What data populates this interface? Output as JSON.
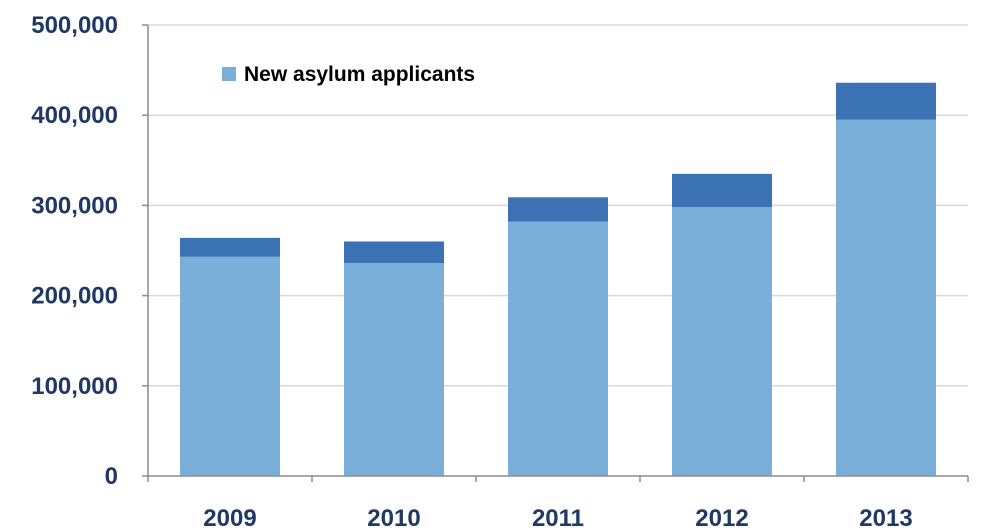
{
  "chart_data": {
    "type": "bar",
    "stacked": true,
    "categories": [
      "2009",
      "2010",
      "2011",
      "2012",
      "2013"
    ],
    "series": [
      {
        "name": "New asylum applicants",
        "values": [
          243000,
          236000,
          282000,
          298000,
          395000
        ],
        "color": "#7aafd9"
      },
      {
        "name": "",
        "values": [
          21000,
          24000,
          27000,
          37000,
          41000
        ],
        "color": "#3b72b4"
      }
    ],
    "y_ticks": [
      0,
      100000,
      200000,
      300000,
      400000,
      500000
    ],
    "y_tick_labels": [
      "0",
      "100,000",
      "200,000",
      "300,000",
      "400,000",
      "500,000"
    ],
    "ylim": [
      0,
      500000
    ],
    "grid": true,
    "gridline_color": "#d9d9d9",
    "axis_color": "#8c8c8c",
    "label_color": "#1f3864",
    "legend": {
      "placement": "top-left",
      "entries": [
        "New asylum applicants"
      ]
    },
    "title": "",
    "xlabel": "",
    "ylabel": ""
  }
}
